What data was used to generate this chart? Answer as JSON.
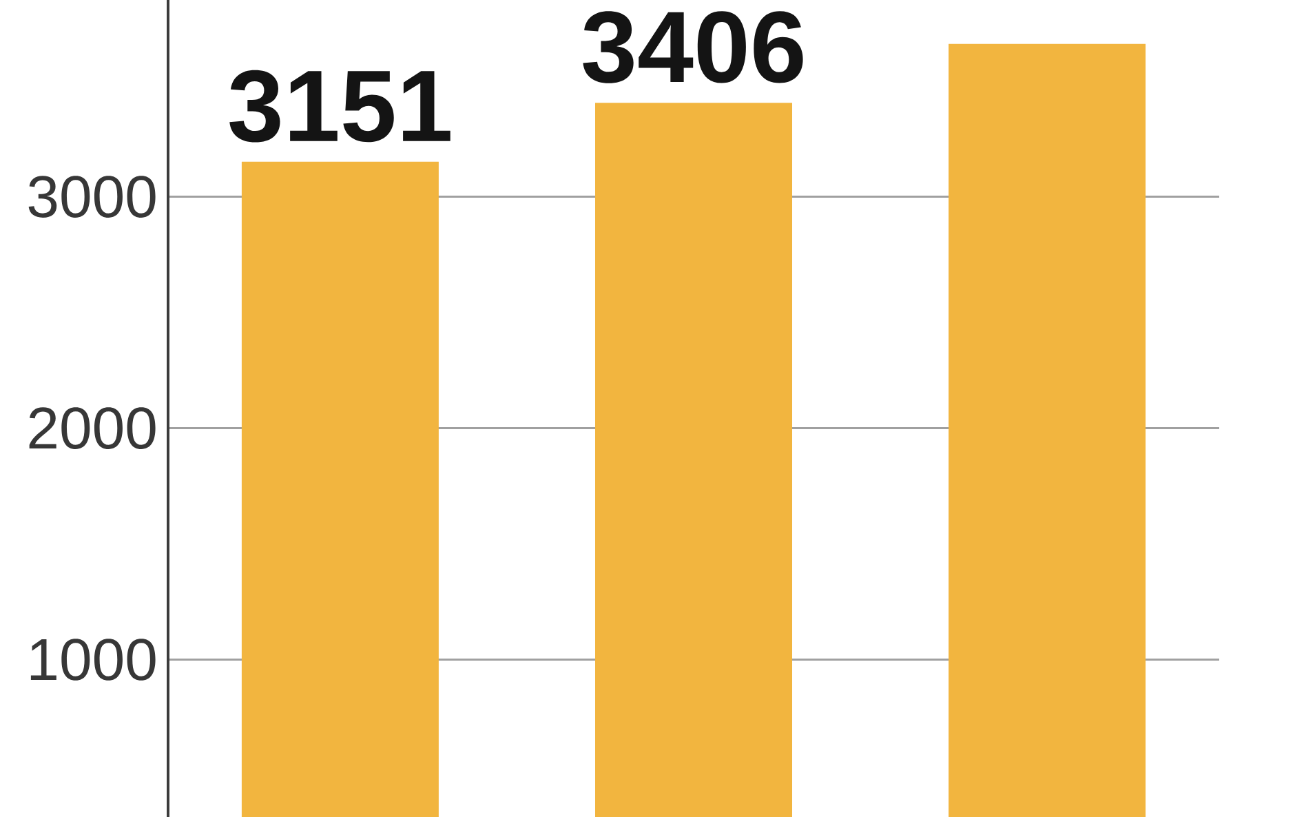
{
  "chart_data": {
    "type": "bar",
    "categories": [
      null,
      null,
      null
    ],
    "values": [
      3151,
      3406,
      3660
    ],
    "value_labels": [
      "3151",
      "3406",
      null
    ],
    "color": "#f2b53f",
    "ylim": [
      320,
      3850
    ],
    "yticks": [
      1000,
      2000,
      3000
    ],
    "grid": "y",
    "tick_labels": "y"
  }
}
